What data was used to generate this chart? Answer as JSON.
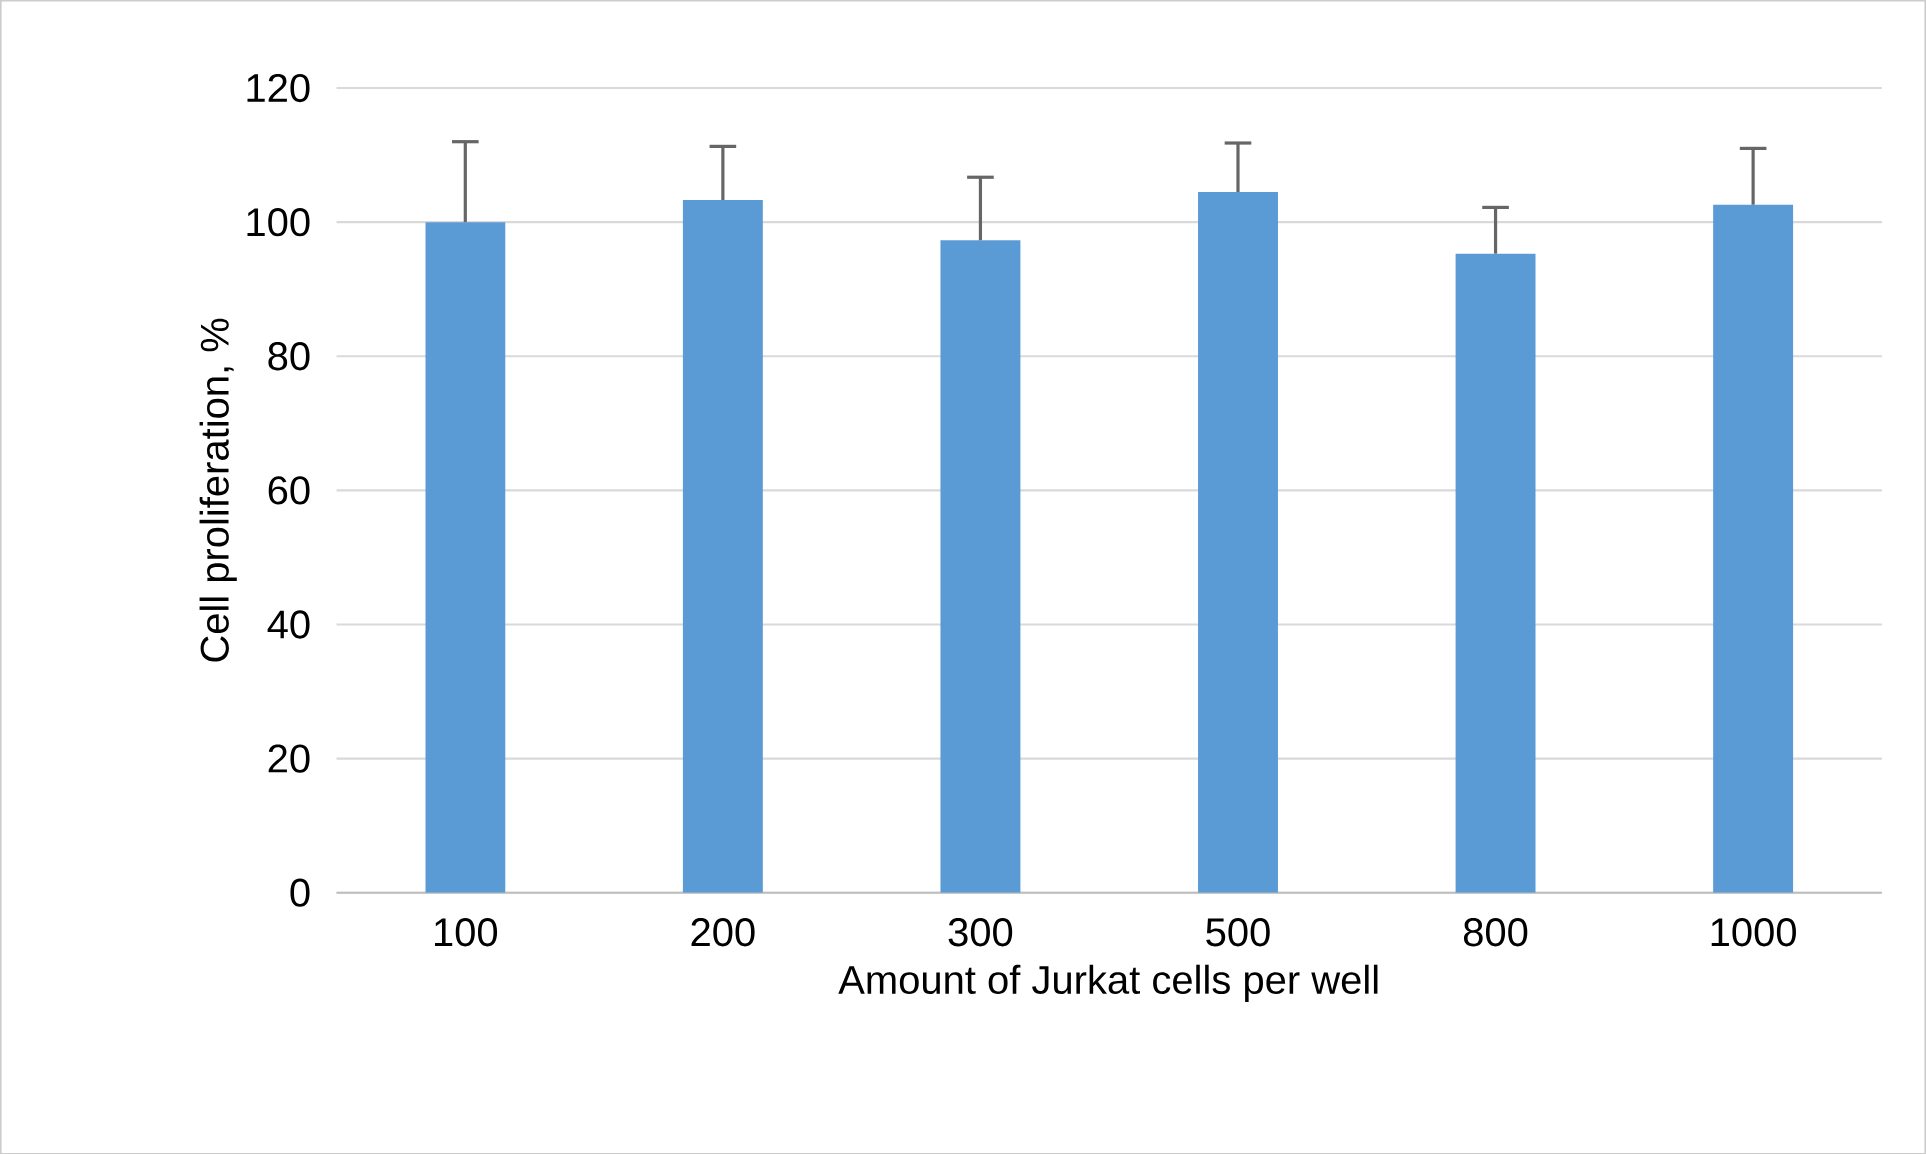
{
  "chart_data": {
    "type": "bar",
    "xlabel": "Amount of Jurkat cells per well",
    "ylabel": "Cell proliferation, %",
    "categories": [
      "100",
      "200",
      "300",
      "500",
      "800",
      "1000"
    ],
    "values": [
      100,
      103.3,
      97.3,
      104.5,
      95.3,
      102.6
    ],
    "errors": [
      [
        100,
        112.0
      ],
      [
        103.3,
        111.3
      ],
      [
        97.3,
        106.7
      ],
      [
        104.5,
        111.8
      ],
      [
        95.3,
        102.2
      ],
      [
        102.6,
        111.0
      ]
    ],
    "color": "#5b9bd5",
    "ylim": [
      0,
      120
    ],
    "yticks": [
      0,
      20,
      40,
      60,
      80,
      100,
      120
    ],
    "grid": "y"
  }
}
